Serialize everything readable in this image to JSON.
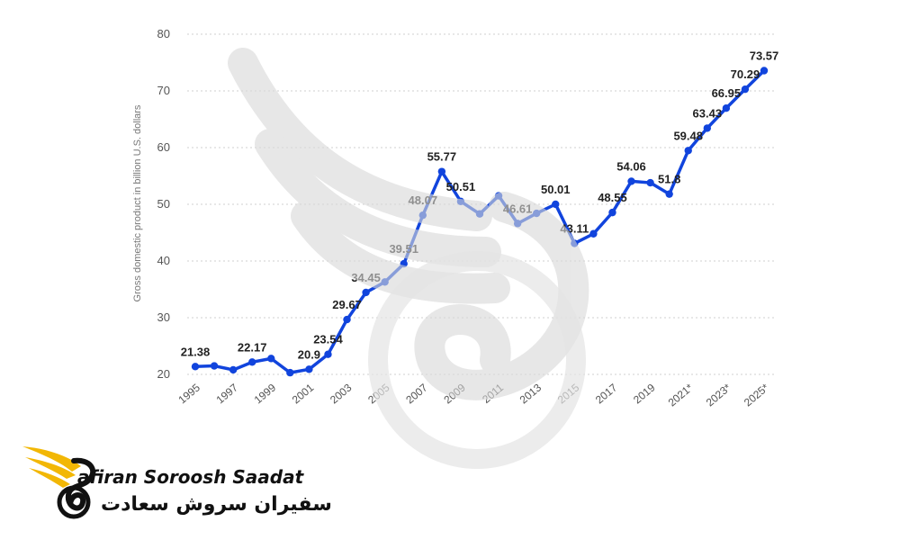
{
  "brand": {
    "name_en": "afiran Soroosh Saadat",
    "name_fa": "سفیران سروش سعادت"
  },
  "chart_data": {
    "type": "line",
    "title": "",
    "xlabel": "",
    "ylabel": "Gross domestic product in billion U.S. dollars",
    "ylim": [
      20,
      80
    ],
    "yticks": [
      20,
      30,
      40,
      50,
      60,
      70,
      80
    ],
    "grid": true,
    "line_color": "#1144dd",
    "x": [
      "1995",
      "1996",
      "1997",
      "1998",
      "1999",
      "2000",
      "2001",
      "2002",
      "2003",
      "2004",
      "2005",
      "2006",
      "2007",
      "2008",
      "2009",
      "2010",
      "2011",
      "2012",
      "2013",
      "2014",
      "2015",
      "2016",
      "2017",
      "2018",
      "2019",
      "2020",
      "2021*",
      "2022*",
      "2023*",
      "2024*",
      "2025*"
    ],
    "xtick_labels": [
      "1995",
      "1997",
      "1999",
      "2001",
      "2003",
      "2005",
      "2007",
      "2009",
      "2011",
      "2013",
      "2015",
      "2017",
      "2019",
      "2021*",
      "2023*",
      "2025*"
    ],
    "values": [
      21.38,
      21.5,
      20.8,
      22.17,
      22.8,
      20.3,
      20.9,
      23.54,
      29.67,
      34.45,
      36.3,
      39.51,
      48.07,
      55.77,
      50.51,
      48.3,
      51.5,
      46.61,
      48.4,
      50.01,
      43.11,
      44.8,
      48.55,
      54.06,
      53.8,
      51.8,
      59.48,
      63.43,
      66.95,
      70.29,
      73.57
    ],
    "data_labels": [
      {
        "i": 0,
        "text": "21.38"
      },
      {
        "i": 3,
        "text": "22.17"
      },
      {
        "i": 6,
        "text": "20.9"
      },
      {
        "i": 7,
        "text": "23.54"
      },
      {
        "i": 8,
        "text": "29.67"
      },
      {
        "i": 9,
        "text": "34.45"
      },
      {
        "i": 11,
        "text": "39.51"
      },
      {
        "i": 12,
        "text": "48.07"
      },
      {
        "i": 13,
        "text": "55.77"
      },
      {
        "i": 14,
        "text": "50.51"
      },
      {
        "i": 17,
        "text": "46.61"
      },
      {
        "i": 19,
        "text": "50.01"
      },
      {
        "i": 20,
        "text": "43.11"
      },
      {
        "i": 22,
        "text": "48.55"
      },
      {
        "i": 23,
        "text": "54.06"
      },
      {
        "i": 25,
        "text": "51.8"
      },
      {
        "i": 26,
        "text": "59.48"
      },
      {
        "i": 27,
        "text": "63.43"
      },
      {
        "i": 28,
        "text": "66.95"
      },
      {
        "i": 29,
        "text": "70.29"
      },
      {
        "i": 30,
        "text": "73.57"
      }
    ]
  }
}
